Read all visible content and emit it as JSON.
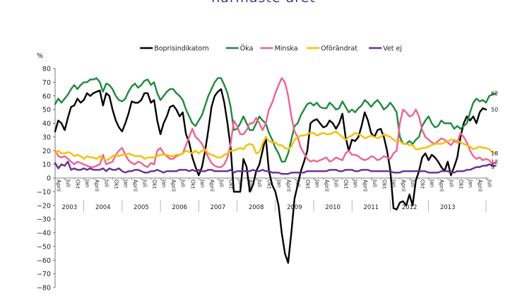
{
  "chart_data": {
    "type": "line",
    "title": "närmaste året",
    "ylabel": "%",
    "ylim": [
      -80,
      80
    ],
    "yticks": [
      80,
      70,
      60,
      50,
      40,
      30,
      20,
      10,
      0,
      -10,
      -20,
      -30,
      -40,
      -50,
      -60,
      -70,
      -80
    ],
    "grid": false,
    "legend_position": "top-center",
    "years": [
      "2003",
      "2004",
      "2005",
      "2006",
      "2007",
      "2008",
      "2009",
      "2010",
      "2011",
      "2012",
      "2013"
    ],
    "month_labels": [
      "April",
      "Juli",
      "Okt",
      "Jan"
    ],
    "x_start": "2003-04",
    "x_end": "2013-10",
    "series": [
      {
        "name": "Boprisindikatorn",
        "color": "#000000",
        "end_label": "50",
        "values": [
          34,
          42,
          40,
          35,
          44,
          52,
          53,
          58,
          55,
          57,
          62,
          60,
          62,
          63,
          64,
          53,
          62,
          60,
          50,
          42,
          37,
          34,
          40,
          47,
          56,
          55,
          55,
          57,
          62,
          62,
          55,
          57,
          42,
          32,
          40,
          45,
          52,
          53,
          50,
          45,
          48,
          32,
          26,
          15,
          8,
          2,
          8,
          20,
          35,
          52,
          60,
          63,
          65,
          55,
          40,
          22,
          -10,
          -10,
          -10,
          14,
          8,
          -10,
          -5,
          5,
          10,
          20,
          30,
          5,
          -5,
          -10,
          -20,
          -40,
          -55,
          -62,
          -40,
          -15,
          -5,
          5,
          12,
          20,
          40,
          42,
          43,
          40,
          37,
          38,
          42,
          40,
          36,
          40,
          47,
          30,
          20,
          28,
          27,
          30,
          38,
          48,
          42,
          33,
          30,
          35,
          36,
          30,
          20,
          6,
          -22,
          -23,
          -18,
          -17,
          -20,
          -12,
          -20,
          -2,
          5,
          15,
          18,
          13,
          17,
          15,
          12,
          8,
          5,
          12,
          2,
          8,
          15,
          30,
          40,
          45,
          42,
          45,
          40,
          48,
          51,
          50
        ]
      },
      {
        "name": "Öka",
        "color": "#1e8a3c",
        "end_label": "62",
        "values": [
          54,
          58,
          55,
          58,
          61,
          65,
          68,
          65,
          68,
          70,
          70,
          72,
          72,
          73,
          70,
          63,
          69,
          68,
          65,
          60,
          57,
          56,
          58,
          63,
          67,
          69,
          66,
          68,
          71,
          72,
          68,
          70,
          62,
          57,
          60,
          63,
          65,
          65,
          62,
          60,
          57,
          50,
          45,
          40,
          38,
          42,
          46,
          53,
          60,
          65,
          70,
          73,
          73,
          68,
          62,
          52,
          35,
          36,
          40,
          45,
          40,
          35,
          35,
          40,
          45,
          42,
          40,
          33,
          28,
          22,
          18,
          12,
          12,
          18,
          28,
          38,
          40,
          46,
          50,
          54,
          55,
          53,
          55,
          52,
          51,
          51,
          55,
          53,
          50,
          51,
          56,
          52,
          48,
          50,
          48,
          51,
          53,
          57,
          55,
          52,
          55,
          57,
          54,
          50,
          52,
          55,
          52,
          48,
          30,
          25,
          25,
          27,
          25,
          28,
          30,
          38,
          42,
          45,
          40,
          37,
          38,
          42,
          40,
          40,
          40,
          36,
          38,
          36,
          38,
          40,
          48,
          55,
          58,
          56,
          57,
          55,
          60,
          61,
          62
        ]
      },
      {
        "name": "Minska",
        "color": "#f06292",
        "end_label": "12",
        "values": [
          20,
          16,
          15,
          16,
          14,
          12,
          10,
          12,
          11,
          10,
          9,
          8,
          8,
          9,
          10,
          17,
          10,
          11,
          12,
          17,
          20,
          22,
          17,
          13,
          11,
          10,
          12,
          11,
          9,
          8,
          11,
          10,
          20,
          22,
          18,
          16,
          14,
          14,
          16,
          17,
          18,
          24,
          30,
          36,
          30,
          28,
          25,
          20,
          15,
          11,
          9,
          8,
          8,
          10,
          15,
          25,
          42,
          38,
          32,
          32,
          35,
          40,
          40,
          44,
          40,
          35,
          40,
          50,
          55,
          62,
          68,
          73,
          70,
          60,
          45,
          34,
          30,
          22,
          18,
          14,
          12,
          13,
          12,
          13,
          14,
          15,
          12,
          13,
          15,
          14,
          13,
          18,
          20,
          17,
          17,
          16,
          14,
          13,
          14,
          16,
          15,
          13,
          14,
          16,
          15,
          14,
          18,
          20,
          40,
          50,
          48,
          45,
          46,
          50,
          45,
          35,
          30,
          28,
          26,
          25,
          27,
          29,
          28,
          26,
          24,
          27,
          26,
          33,
          30,
          26,
          20,
          16,
          14,
          15,
          13,
          14,
          13,
          10,
          12
        ]
      },
      {
        "name": "Oförändrat",
        "color": "#f5c000",
        "end_label": "18",
        "values": [
          18,
          20,
          18,
          18,
          19,
          18,
          16,
          17,
          16,
          14,
          16,
          15,
          15,
          14,
          16,
          14,
          13,
          14,
          16,
          17,
          16,
          17,
          17,
          18,
          17,
          16,
          16,
          16,
          14,
          15,
          15,
          15,
          16,
          17,
          17,
          17,
          16,
          16,
          17,
          17,
          18,
          20,
          19,
          18,
          20,
          18,
          20,
          21,
          18,
          17,
          16,
          15,
          15,
          17,
          18,
          20,
          20,
          21,
          22,
          21,
          24,
          25,
          24,
          18,
          19,
          25,
          30,
          27,
          26,
          26,
          24,
          24,
          22,
          21,
          23,
          28,
          30,
          31,
          31,
          32,
          33,
          33,
          31,
          32,
          33,
          32,
          32,
          33,
          34,
          32,
          30,
          28,
          30,
          31,
          33,
          32,
          31,
          29,
          30,
          31,
          30,
          29,
          30,
          32,
          31,
          30,
          28,
          27,
          27,
          25,
          25,
          24,
          24,
          21,
          21,
          22,
          22,
          23,
          24,
          25,
          25,
          25,
          26,
          27,
          28,
          28,
          27,
          26,
          25,
          24,
          23,
          21,
          22,
          23,
          22,
          22,
          21,
          19,
          18
        ]
      },
      {
        "name": "Vet ej",
        "color": "#6a2c91",
        "end_label": "9",
        "values": [
          11,
          7,
          10,
          9,
          12,
          6,
          7,
          6,
          6,
          7,
          6,
          7,
          6,
          6,
          6,
          7,
          5,
          7,
          6,
          6,
          7,
          5,
          4,
          5,
          5,
          6,
          6,
          5,
          4,
          4,
          5,
          5,
          6,
          5,
          4,
          5,
          5,
          5,
          5,
          6,
          6,
          6,
          5,
          6,
          5,
          6,
          5,
          5,
          6,
          6,
          5,
          5,
          5,
          5,
          5,
          6,
          4,
          5,
          5,
          5,
          5,
          5,
          6,
          5,
          5,
          6,
          5,
          5,
          4,
          4,
          4,
          3,
          3,
          3,
          4,
          4,
          4,
          4,
          4,
          5,
          5,
          5,
          5,
          5,
          5,
          5,
          6,
          6,
          6,
          5,
          5,
          6,
          6,
          6,
          5,
          5,
          6,
          6,
          6,
          5,
          5,
          5,
          5,
          5,
          5,
          5,
          4,
          4,
          4,
          5,
          5,
          5,
          5,
          5,
          5,
          5,
          5,
          4,
          4,
          4,
          4,
          5,
          5,
          5,
          4,
          4,
          5,
          5,
          5,
          6,
          6,
          7,
          8,
          8,
          9,
          9,
          10,
          9,
          9
        ]
      }
    ]
  }
}
